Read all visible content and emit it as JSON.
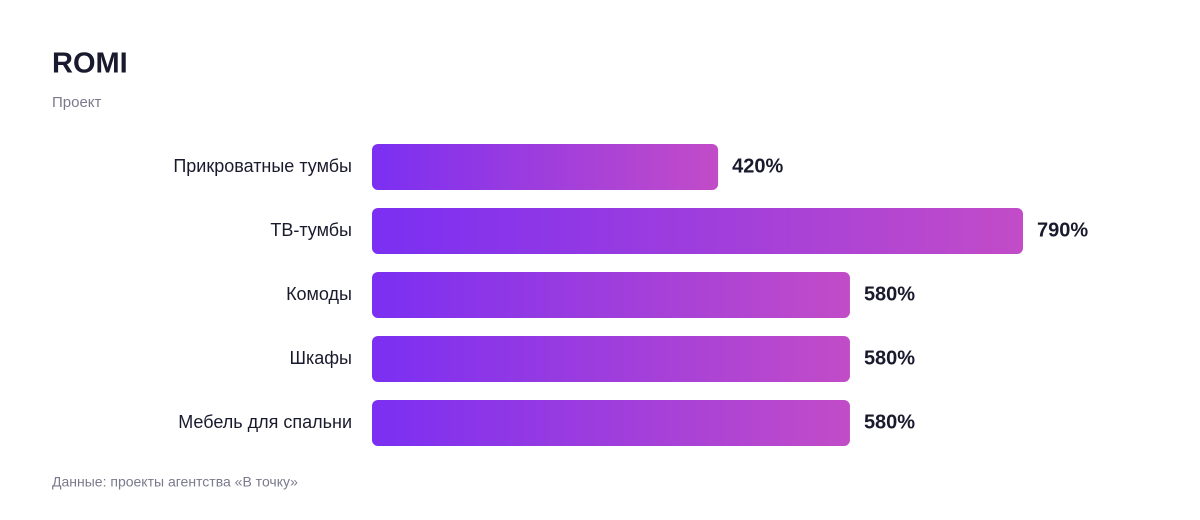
{
  "chart_data": {
    "type": "bar",
    "orientation": "horizontal",
    "title": "ROMI",
    "subtitle": "Проект",
    "categories": [
      "Прикроватные тумбы",
      "ТВ-тумбы",
      "Комоды",
      "Шкафы",
      "Мебель для спальни"
    ],
    "values": [
      420,
      790,
      580,
      580,
      580
    ],
    "value_labels": [
      "420%",
      "790%",
      "580%",
      "580%",
      "580%"
    ],
    "gradient": [
      "#7b2ff2",
      "#c24cc8"
    ],
    "source": "Данные: проекты агентства «В точку»"
  }
}
